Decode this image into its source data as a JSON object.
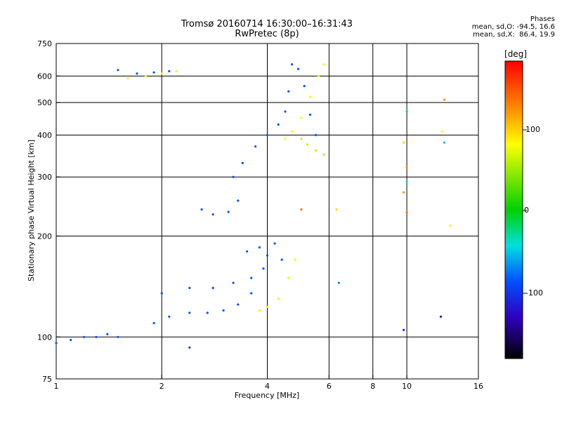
{
  "header": {
    "title": "Tromsø 20160714 16:30:00–16:31:43",
    "subtitle": "RwPretec (8p)"
  },
  "phase_info": {
    "heading": "Phases",
    "line_o": "mean, sd,O: -94.5, 16.6",
    "line_x": "mean, sd,X:  86.4, 19.9"
  },
  "colorbar": {
    "unit": "deg",
    "tick_labels": [
      "100",
      "0",
      "-100"
    ],
    "range": [
      -180,
      180
    ]
  },
  "chart_data": {
    "type": "scatter",
    "title": "Tromsø 20160714 16:30:00–16:31:43",
    "subtitle": "RwPretec (8p)",
    "xlabel": "Frequency [MHz]",
    "ylabel": "Stationary phase Virtual Height [km]",
    "xscale": "log",
    "yscale": "log",
    "xlim": [
      1,
      16
    ],
    "ylim": [
      75,
      750
    ],
    "x_ticks": [
      "1",
      "2",
      "4",
      "6",
      "8",
      "10",
      "16"
    ],
    "x_tick_values": [
      1,
      2,
      4,
      6,
      8,
      10,
      16
    ],
    "y_ticks": [
      "75",
      "100",
      "200",
      "300",
      "400",
      "500",
      "600",
      "750"
    ],
    "y_tick_values": [
      75,
      100,
      200,
      300,
      400,
      500,
      600,
      750
    ],
    "x_gridlines": [
      2,
      4,
      6,
      8,
      10
    ],
    "y_gridlines": [
      100,
      200,
      300,
      400,
      500,
      600
    ],
    "grid": true,
    "color_scale": "phase [deg], -180 to 180",
    "series": [
      {
        "traces": [
          {
            "phase": -95,
            "x": [
              1.0,
              1.1,
              1.2,
              1.3,
              1.4,
              1.5
            ],
            "y": [
              96,
              98,
              100,
              100,
              102,
              100
            ]
          },
          {
            "phase": -95,
            "x": [
              1.9,
              2.1,
              2.4,
              2.7,
              3.0,
              3.3,
              3.6
            ],
            "y": [
              110,
              115,
              118,
              118,
              120,
              125,
              135
            ]
          },
          {
            "phase": -95,
            "x": [
              2.0,
              2.4,
              2.8,
              3.2,
              3.6,
              3.9
            ],
            "y": [
              135,
              140,
              140,
              145,
              150,
              160
            ]
          },
          {
            "phase": -95,
            "x": [
              3.5,
              3.8,
              4.0,
              4.2,
              4.4
            ],
            "y": [
              180,
              185,
              175,
              190,
              170
            ]
          },
          {
            "phase": -95,
            "x": [
              2.6,
              2.8,
              3.1,
              3.3
            ],
            "y": [
              240,
              232,
              236,
              255
            ]
          },
          {
            "phase": -95,
            "x": [
              3.2,
              3.4,
              3.7,
              4.0,
              4.3,
              4.5,
              4.6,
              4.7
            ],
            "y": [
              300,
              330,
              370,
              400,
              430,
              470,
              540,
              650
            ]
          },
          {
            "phase": -95,
            "x": [
              4.9,
              5.1,
              5.3,
              5.5
            ],
            "y": [
              630,
              560,
              460,
              400
            ]
          },
          {
            "phase": -95,
            "x": [
              1.5,
              1.7,
              1.9,
              2.1
            ],
            "y": [
              625,
              610,
              615,
              620
            ]
          }
        ]
      },
      {
        "traces": [
          {
            "phase": 95,
            "x": [
              3.8,
              4.0,
              4.3,
              4.6,
              4.8
            ],
            "y": [
              120,
              123,
              130,
              150,
              170
            ]
          },
          {
            "phase": 95,
            "x": [
              4.5,
              4.7,
              5.0,
              5.3,
              5.6,
              5.8
            ],
            "y": [
              390,
              410,
              450,
              520,
              600,
              650
            ]
          },
          {
            "phase": 75,
            "x": [
              5.0,
              5.2,
              5.5,
              5.8
            ],
            "y": [
              390,
              375,
              360,
              350
            ]
          },
          {
            "phase": 95,
            "x": [
              1.6,
              1.8,
              2.0,
              2.2
            ],
            "y": [
              590,
              600,
              610,
              620
            ]
          }
        ]
      }
    ],
    "scattered_points": [
      {
        "x": 10.0,
        "y": 470,
        "phase": -30
      },
      {
        "x": 9.8,
        "y": 380,
        "phase": 110
      },
      {
        "x": 10.0,
        "y": 320,
        "phase": 130
      },
      {
        "x": 10.0,
        "y": 290,
        "phase": -40
      },
      {
        "x": 9.8,
        "y": 270,
        "phase": 130
      },
      {
        "x": 10.0,
        "y": 235,
        "phase": 140
      },
      {
        "x": 12.8,
        "y": 510,
        "phase": 130
      },
      {
        "x": 12.6,
        "y": 410,
        "phase": 100
      },
      {
        "x": 12.8,
        "y": 380,
        "phase": -60
      },
      {
        "x": 13.3,
        "y": 215,
        "phase": 100
      },
      {
        "x": 12.5,
        "y": 115,
        "phase": -140
      },
      {
        "x": 9.8,
        "y": 105,
        "phase": -120
      },
      {
        "x": 6.4,
        "y": 145,
        "phase": -80
      },
      {
        "x": 6.3,
        "y": 240,
        "phase": 110
      },
      {
        "x": 5.0,
        "y": 240,
        "phase": 140
      },
      {
        "x": 2.4,
        "y": 93,
        "phase": -110
      }
    ]
  },
  "colors": {
    "grid": "#000000",
    "frame": "#000000",
    "background": "#ffffff"
  }
}
